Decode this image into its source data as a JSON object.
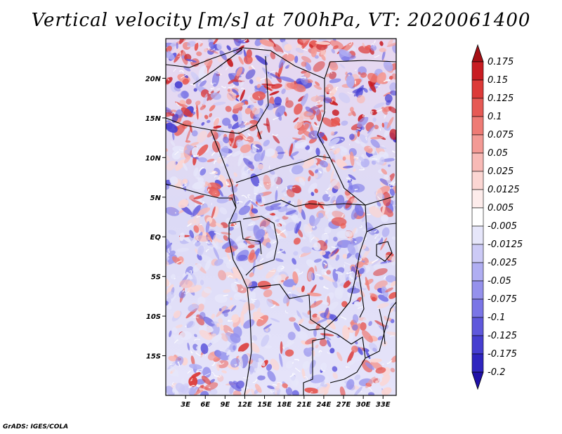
{
  "title": "Vertical velocity [m/s] at 700hPa, VT: 2020061400",
  "credit": "GrADS: IGES/COLA",
  "chart_data": {
    "type": "heatmap",
    "title": "Vertical velocity [m/s] at 700hPa, VT: 2020061400",
    "variable": "Vertical velocity",
    "units": "m/s",
    "level": "700hPa",
    "valid_time": "2020061400",
    "xlim": [
      0,
      35
    ],
    "ylim": [
      -20,
      25
    ],
    "x_ticks": [
      {
        "value": 3,
        "label": "3E"
      },
      {
        "value": 6,
        "label": "6E"
      },
      {
        "value": 9,
        "label": "9E"
      },
      {
        "value": 12,
        "label": "12E"
      },
      {
        "value": 15,
        "label": "15E"
      },
      {
        "value": 18,
        "label": "18E"
      },
      {
        "value": 21,
        "label": "21E"
      },
      {
        "value": 24,
        "label": "24E"
      },
      {
        "value": 27,
        "label": "27E"
      },
      {
        "value": 30,
        "label": "30E"
      },
      {
        "value": 33,
        "label": "33E"
      }
    ],
    "y_ticks": [
      {
        "value": 20,
        "label": "20N"
      },
      {
        "value": 15,
        "label": "15N"
      },
      {
        "value": 10,
        "label": "10N"
      },
      {
        "value": 5,
        "label": "5N"
      },
      {
        "value": 0,
        "label": "EQ"
      },
      {
        "value": -5,
        "label": "5S"
      },
      {
        "value": -10,
        "label": "10S"
      },
      {
        "value": -15,
        "label": "15S"
      }
    ],
    "colorbar": {
      "labels": [
        "0.175",
        "0.15",
        "0.125",
        "0.1",
        "0.075",
        "0.05",
        "0.025",
        "0.0125",
        "0.005",
        "-0.005",
        "-0.0125",
        "-0.025",
        "-0.05",
        "-0.075",
        "-0.1",
        "-0.125",
        "-0.175",
        "-0.2"
      ],
      "colors": [
        "#a50f15",
        "#c81c22",
        "#dc3a38",
        "#e65a55",
        "#ee7b75",
        "#f39a95",
        "#f8bab6",
        "#fbd6d3",
        "#fdeceb",
        "#ffffff",
        "#e6e6fa",
        "#cccaf6",
        "#b0aef2",
        "#9591ec",
        "#7a75e6",
        "#5f58dc",
        "#463ed0",
        "#2f25bf",
        "#1f10a8"
      ]
    }
  }
}
